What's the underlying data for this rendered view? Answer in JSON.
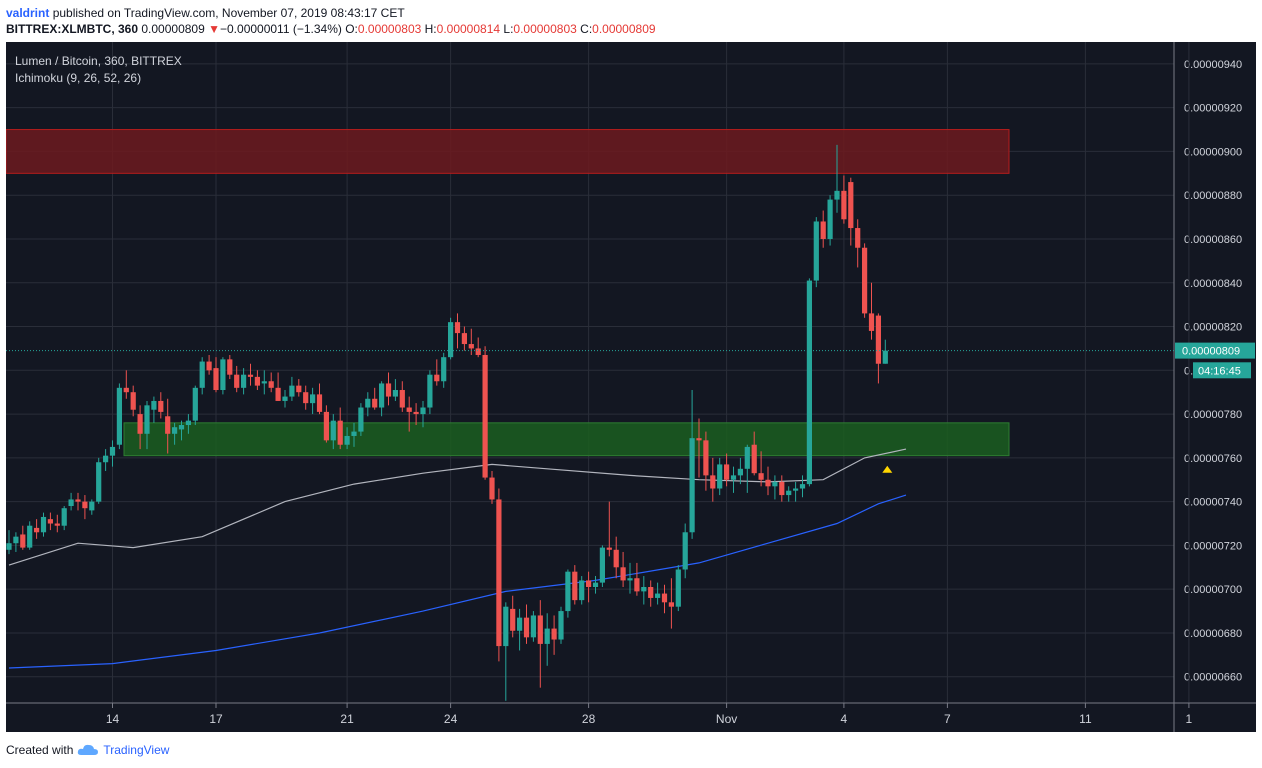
{
  "header": {
    "author": "valdrint",
    "published_text": "published on TradingView.com, November 07, 2019 08:43:17 CET",
    "symbol": "BITTREX:XLMBTC, 360",
    "last_price": "0.00000809",
    "change_arrow": "▼",
    "change_text": "−0.00000011 (−1.34%)",
    "o_label": "O:",
    "o_value": "0.00000803",
    "h_label": "H:",
    "h_value": "0.00000814",
    "l_label": "L:",
    "l_value": "0.00000803",
    "c_label": "C:",
    "c_value": "0.00000809"
  },
  "legend": {
    "title": "Lumen / Bitcoin, 360, BITTREX",
    "indicator": "Ichimoku (9, 26, 52, 26)"
  },
  "footer": {
    "created_with": "Created with",
    "brand": "TradingView",
    "logo_icon": "tradingview-cloud-icon"
  },
  "colors": {
    "background": "#131722",
    "grid": "#2a2e39",
    "up": "#26a69a",
    "down": "#ef5350",
    "resistance_zone": "#6d1a1f",
    "support_zone": "#1b5e20",
    "ma_gray": "#b2b5be",
    "ma_blue": "#2962ff",
    "marker": "#ffd600"
  },
  "chart_data": {
    "type": "candlestick",
    "y_range": [
      6.48e-06,
      9.5e-06
    ],
    "y_ticks": [
      "0.00000940",
      "0.00000920",
      "0.00000900",
      "0.00000880",
      "0.00000860",
      "0.00000840",
      "0.00000820",
      "0.00000780",
      "0.00000760",
      "0.00000740",
      "0.00000720",
      "0.00000700",
      "0.00000680",
      "0.00000660"
    ],
    "partial_tick_label": "0.",
    "x_ticks": [
      "14",
      "17",
      "21",
      "24",
      "28",
      "Nov",
      "4",
      "7",
      "11",
      "1"
    ],
    "current_price_label": "0.00000809",
    "countdown_label": "04:16:45",
    "current_price": 8.09e-06,
    "zones": [
      {
        "name": "resistance",
        "low": 8.9e-06,
        "high": 9.1e-06
      },
      {
        "name": "support",
        "low": 7.61e-06,
        "high": 7.76e-06
      }
    ],
    "candles": [
      {
        "o": 718,
        "h": 727,
        "l": 716,
        "c": 721
      },
      {
        "o": 721,
        "h": 726,
        "l": 717,
        "c": 724
      },
      {
        "o": 725,
        "h": 729,
        "l": 718,
        "c": 719
      },
      {
        "o": 719,
        "h": 731,
        "l": 718,
        "c": 729
      },
      {
        "o": 728,
        "h": 732,
        "l": 723,
        "c": 726
      },
      {
        "o": 726,
        "h": 735,
        "l": 724,
        "c": 733
      },
      {
        "o": 732,
        "h": 735,
        "l": 727,
        "c": 730
      },
      {
        "o": 730,
        "h": 734,
        "l": 726,
        "c": 729
      },
      {
        "o": 729,
        "h": 738,
        "l": 727,
        "c": 737
      },
      {
        "o": 738,
        "h": 744,
        "l": 736,
        "c": 741
      },
      {
        "o": 741,
        "h": 744,
        "l": 736,
        "c": 740
      },
      {
        "o": 740,
        "h": 743,
        "l": 732,
        "c": 737
      },
      {
        "o": 736,
        "h": 741,
        "l": 734,
        "c": 740
      },
      {
        "o": 740,
        "h": 760,
        "l": 739,
        "c": 758
      },
      {
        "o": 758,
        "h": 764,
        "l": 754,
        "c": 761
      },
      {
        "o": 761,
        "h": 768,
        "l": 756,
        "c": 765
      },
      {
        "o": 766,
        "h": 794,
        "l": 764,
        "c": 792
      },
      {
        "o": 792,
        "h": 800,
        "l": 787,
        "c": 790
      },
      {
        "o": 790,
        "h": 793,
        "l": 779,
        "c": 782
      },
      {
        "o": 780,
        "h": 784,
        "l": 764,
        "c": 771
      },
      {
        "o": 771,
        "h": 786,
        "l": 764,
        "c": 784
      },
      {
        "o": 782,
        "h": 788,
        "l": 776,
        "c": 786
      },
      {
        "o": 786,
        "h": 790,
        "l": 778,
        "c": 781
      },
      {
        "o": 779,
        "h": 787,
        "l": 762,
        "c": 771
      },
      {
        "o": 771,
        "h": 776,
        "l": 766,
        "c": 774
      },
      {
        "o": 773,
        "h": 777,
        "l": 768,
        "c": 775
      },
      {
        "o": 775,
        "h": 780,
        "l": 771,
        "c": 777
      },
      {
        "o": 777,
        "h": 793,
        "l": 775,
        "c": 792
      },
      {
        "o": 792,
        "h": 806,
        "l": 789,
        "c": 804
      },
      {
        "o": 804,
        "h": 807,
        "l": 798,
        "c": 800
      },
      {
        "o": 801,
        "h": 806,
        "l": 790,
        "c": 791
      },
      {
        "o": 791,
        "h": 806,
        "l": 789,
        "c": 805
      },
      {
        "o": 805,
        "h": 807,
        "l": 796,
        "c": 798
      },
      {
        "o": 798,
        "h": 802,
        "l": 790,
        "c": 792
      },
      {
        "o": 792,
        "h": 801,
        "l": 789,
        "c": 798
      },
      {
        "o": 798,
        "h": 803,
        "l": 793,
        "c": 797
      },
      {
        "o": 797,
        "h": 800,
        "l": 791,
        "c": 793
      },
      {
        "o": 794,
        "h": 800,
        "l": 789,
        "c": 795
      },
      {
        "o": 795,
        "h": 799,
        "l": 790,
        "c": 792
      },
      {
        "o": 792,
        "h": 799,
        "l": 786,
        "c": 786
      },
      {
        "o": 786,
        "h": 791,
        "l": 783,
        "c": 788
      },
      {
        "o": 788,
        "h": 797,
        "l": 786,
        "c": 793
      },
      {
        "o": 793,
        "h": 796,
        "l": 788,
        "c": 790
      },
      {
        "o": 790,
        "h": 793,
        "l": 782,
        "c": 785
      },
      {
        "o": 785,
        "h": 792,
        "l": 780,
        "c": 789
      },
      {
        "o": 789,
        "h": 794,
        "l": 780,
        "c": 781
      },
      {
        "o": 781,
        "h": 784,
        "l": 767,
        "c": 768
      },
      {
        "o": 768,
        "h": 780,
        "l": 764,
        "c": 777
      },
      {
        "o": 777,
        "h": 783,
        "l": 764,
        "c": 766
      },
      {
        "o": 766,
        "h": 774,
        "l": 764,
        "c": 770
      },
      {
        "o": 770,
        "h": 776,
        "l": 765,
        "c": 772
      },
      {
        "o": 772,
        "h": 785,
        "l": 770,
        "c": 783
      },
      {
        "o": 783,
        "h": 790,
        "l": 779,
        "c": 787
      },
      {
        "o": 787,
        "h": 792,
        "l": 782,
        "c": 783
      },
      {
        "o": 783,
        "h": 795,
        "l": 779,
        "c": 794
      },
      {
        "o": 794,
        "h": 799,
        "l": 784,
        "c": 788
      },
      {
        "o": 788,
        "h": 796,
        "l": 786,
        "c": 791
      },
      {
        "o": 791,
        "h": 795,
        "l": 781,
        "c": 783
      },
      {
        "o": 783,
        "h": 788,
        "l": 772,
        "c": 781
      },
      {
        "o": 781,
        "h": 785,
        "l": 775,
        "c": 780
      },
      {
        "o": 780,
        "h": 786,
        "l": 774,
        "c": 783
      },
      {
        "o": 783,
        "h": 800,
        "l": 780,
        "c": 798
      },
      {
        "o": 798,
        "h": 805,
        "l": 793,
        "c": 795
      },
      {
        "o": 795,
        "h": 808,
        "l": 792,
        "c": 806
      },
      {
        "o": 806,
        "h": 824,
        "l": 805,
        "c": 822
      },
      {
        "o": 822,
        "h": 826,
        "l": 810,
        "c": 817
      },
      {
        "o": 817,
        "h": 820,
        "l": 809,
        "c": 812
      },
      {
        "o": 812,
        "h": 819,
        "l": 807,
        "c": 810
      },
      {
        "o": 810,
        "h": 815,
        "l": 806,
        "c": 807
      },
      {
        "o": 807,
        "h": 811,
        "l": 750,
        "c": 751
      },
      {
        "o": 751,
        "h": 754,
        "l": 739,
        "c": 741
      },
      {
        "o": 741,
        "h": 746,
        "l": 667,
        "c": 674
      },
      {
        "o": 674,
        "h": 694,
        "l": 649,
        "c": 692
      },
      {
        "o": 691,
        "h": 697,
        "l": 678,
        "c": 681
      },
      {
        "o": 681,
        "h": 691,
        "l": 672,
        "c": 687
      },
      {
        "o": 687,
        "h": 693,
        "l": 675,
        "c": 678
      },
      {
        "o": 678,
        "h": 690,
        "l": 676,
        "c": 688
      },
      {
        "o": 688,
        "h": 695,
        "l": 655,
        "c": 675
      },
      {
        "o": 675,
        "h": 689,
        "l": 665,
        "c": 682
      },
      {
        "o": 682,
        "h": 688,
        "l": 670,
        "c": 677
      },
      {
        "o": 677,
        "h": 692,
        "l": 675,
        "c": 690
      },
      {
        "o": 690,
        "h": 709,
        "l": 687,
        "c": 708
      },
      {
        "o": 708,
        "h": 711,
        "l": 693,
        "c": 695
      },
      {
        "o": 695,
        "h": 706,
        "l": 693,
        "c": 704
      },
      {
        "o": 704,
        "h": 708,
        "l": 694,
        "c": 701
      },
      {
        "o": 701,
        "h": 706,
        "l": 698,
        "c": 703
      },
      {
        "o": 703,
        "h": 720,
        "l": 701,
        "c": 719
      },
      {
        "o": 719,
        "h": 740,
        "l": 715,
        "c": 718
      },
      {
        "o": 718,
        "h": 724,
        "l": 705,
        "c": 710
      },
      {
        "o": 710,
        "h": 717,
        "l": 701,
        "c": 704
      },
      {
        "o": 704,
        "h": 712,
        "l": 698,
        "c": 705
      },
      {
        "o": 705,
        "h": 712,
        "l": 697,
        "c": 699
      },
      {
        "o": 699,
        "h": 706,
        "l": 693,
        "c": 701
      },
      {
        "o": 701,
        "h": 704,
        "l": 692,
        "c": 696
      },
      {
        "o": 696,
        "h": 703,
        "l": 693,
        "c": 698
      },
      {
        "o": 698,
        "h": 702,
        "l": 689,
        "c": 694
      },
      {
        "o": 694,
        "h": 705,
        "l": 682,
        "c": 692
      },
      {
        "o": 692,
        "h": 711,
        "l": 690,
        "c": 709
      },
      {
        "o": 709,
        "h": 730,
        "l": 705,
        "c": 726
      },
      {
        "o": 726,
        "h": 791,
        "l": 723,
        "c": 769
      },
      {
        "o": 769,
        "h": 778,
        "l": 751,
        "c": 768
      },
      {
        "o": 768,
        "h": 772,
        "l": 745,
        "c": 752
      },
      {
        "o": 752,
        "h": 760,
        "l": 740,
        "c": 746
      },
      {
        "o": 746,
        "h": 760,
        "l": 743,
        "c": 757
      },
      {
        "o": 757,
        "h": 762,
        "l": 747,
        "c": 750
      },
      {
        "o": 750,
        "h": 756,
        "l": 744,
        "c": 752
      },
      {
        "o": 752,
        "h": 760,
        "l": 748,
        "c": 755
      },
      {
        "o": 755,
        "h": 766,
        "l": 744,
        "c": 765
      },
      {
        "o": 766,
        "h": 772,
        "l": 752,
        "c": 753
      },
      {
        "o": 753,
        "h": 763,
        "l": 747,
        "c": 750
      },
      {
        "o": 750,
        "h": 756,
        "l": 743,
        "c": 747
      },
      {
        "o": 747,
        "h": 752,
        "l": 741,
        "c": 749
      },
      {
        "o": 749,
        "h": 752,
        "l": 740,
        "c": 743
      },
      {
        "o": 743,
        "h": 747,
        "l": 740,
        "c": 745
      },
      {
        "o": 745,
        "h": 749,
        "l": 740,
        "c": 746
      },
      {
        "o": 746,
        "h": 752,
        "l": 742,
        "c": 748
      },
      {
        "o": 748,
        "h": 842,
        "l": 747,
        "c": 841
      },
      {
        "o": 841,
        "h": 870,
        "l": 838,
        "c": 868
      },
      {
        "o": 868,
        "h": 873,
        "l": 856,
        "c": 860
      },
      {
        "o": 860,
        "h": 880,
        "l": 857,
        "c": 878
      },
      {
        "o": 878,
        "h": 903,
        "l": 872,
        "c": 882
      },
      {
        "o": 882,
        "h": 889,
        "l": 867,
        "c": 869
      },
      {
        "o": 886,
        "h": 888,
        "l": 857,
        "c": 865
      },
      {
        "o": 865,
        "h": 869,
        "l": 847,
        "c": 856
      },
      {
        "o": 856,
        "h": 858,
        "l": 824,
        "c": 826
      },
      {
        "o": 826,
        "h": 840,
        "l": 814,
        "c": 818
      },
      {
        "o": 825,
        "h": 826,
        "l": 794,
        "c": 803
      },
      {
        "o": 803,
        "h": 814,
        "l": 803,
        "c": 809
      }
    ],
    "ma_gray": [
      {
        "i": 0,
        "v": 711
      },
      {
        "i": 10,
        "v": 721
      },
      {
        "i": 18,
        "v": 719
      },
      {
        "i": 28,
        "v": 724
      },
      {
        "i": 40,
        "v": 740
      },
      {
        "i": 50,
        "v": 748
      },
      {
        "i": 60,
        "v": 753
      },
      {
        "i": 70,
        "v": 757
      },
      {
        "i": 78,
        "v": 755
      },
      {
        "i": 90,
        "v": 752
      },
      {
        "i": 100,
        "v": 750
      },
      {
        "i": 110,
        "v": 749
      },
      {
        "i": 118,
        "v": 750
      },
      {
        "i": 124,
        "v": 760
      },
      {
        "i": 130,
        "v": 764
      }
    ],
    "ma_blue": [
      {
        "i": 0,
        "v": 664
      },
      {
        "i": 15,
        "v": 666
      },
      {
        "i": 30,
        "v": 672
      },
      {
        "i": 45,
        "v": 680
      },
      {
        "i": 60,
        "v": 690
      },
      {
        "i": 72,
        "v": 699
      },
      {
        "i": 85,
        "v": 704
      },
      {
        "i": 100,
        "v": 712
      },
      {
        "i": 110,
        "v": 721
      },
      {
        "i": 120,
        "v": 730
      },
      {
        "i": 126,
        "v": 739
      },
      {
        "i": 130,
        "v": 743
      }
    ],
    "marker_price": 7.55e-06
  }
}
